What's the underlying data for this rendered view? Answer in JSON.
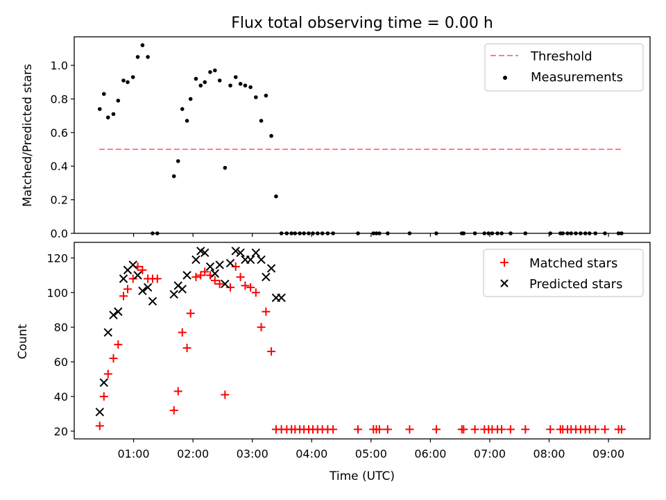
{
  "title": "Flux total observing time = 0.00 h",
  "xlabel": "Time (UTC)",
  "colors": {
    "threshold": "#ff7f7f",
    "measurement": "#000000",
    "matched": "#ff0000",
    "predicted": "#000000",
    "axes": "#000000",
    "background": "#ffffff"
  },
  "chart_data": [
    {
      "type": "scatter",
      "panel": "top",
      "ylabel": "Matched/Predicted stars",
      "xlim_hours": [
        0.0,
        9.7
      ],
      "ylim": [
        0.0,
        1.17
      ],
      "yticks": [
        0.0,
        0.2,
        0.4,
        0.6,
        0.8,
        1.0
      ],
      "ytick_labels": [
        "0.0",
        "0.2",
        "0.4",
        "0.6",
        "0.8",
        "1.0"
      ],
      "legend_position": "upper right",
      "series": [
        {
          "name": "Threshold",
          "kind": "line",
          "style": "dashed",
          "x_hours": [
            0.42,
            9.22
          ],
          "y": [
            0.5,
            0.5
          ]
        },
        {
          "name": "Measurements",
          "kind": "scatter",
          "marker": "dot",
          "x_hours": [
            0.43,
            0.5,
            0.57,
            0.66,
            0.74,
            0.83,
            0.9,
            0.99,
            1.07,
            1.15,
            1.24,
            1.32,
            1.4,
            1.68,
            1.75,
            1.82,
            1.9,
            1.96,
            2.05,
            2.13,
            2.2,
            2.29,
            2.37,
            2.45,
            2.54,
            2.63,
            2.72,
            2.8,
            2.88,
            2.97,
            3.06,
            3.15,
            3.23,
            3.32,
            3.4,
            3.49,
            3.58,
            3.66,
            3.72,
            3.8,
            3.87,
            3.95,
            4.02,
            4.1,
            4.18,
            4.27,
            4.36,
            4.78,
            5.04,
            5.09,
            5.14,
            5.28,
            5.65,
            6.1,
            6.53,
            6.56,
            6.75,
            6.91,
            6.98,
            7.04,
            7.13,
            7.2,
            7.35,
            7.6,
            8.02,
            8.19,
            8.23,
            8.31,
            8.37,
            8.45,
            8.53,
            8.61,
            8.68,
            8.78,
            8.94,
            9.17,
            9.22
          ],
          "y": [
            0.74,
            0.83,
            0.69,
            0.71,
            0.79,
            0.91,
            0.9,
            0.93,
            1.05,
            1.12,
            1.05,
            0.0,
            0.0,
            0.34,
            0.43,
            0.74,
            0.67,
            0.8,
            0.92,
            0.88,
            0.9,
            0.96,
            0.97,
            0.91,
            0.39,
            0.88,
            0.93,
            0.89,
            0.88,
            0.87,
            0.81,
            0.67,
            0.82,
            0.58,
            0.22,
            0.0,
            0.0,
            0.0,
            0.0,
            0.0,
            0.0,
            0.0,
            0.0,
            0.0,
            0.0,
            0.0,
            0.0,
            0.0,
            0.0,
            0.0,
            0.0,
            0.0,
            0.0,
            0.0,
            0.0,
            0.0,
            0.0,
            0.0,
            0.0,
            0.0,
            0.0,
            0.0,
            0.0,
            0.0,
            0.0,
            0.0,
            0.0,
            0.0,
            0.0,
            0.0,
            0.0,
            0.0,
            0.0,
            0.0,
            0.0,
            0.0,
            0.0
          ]
        }
      ]
    },
    {
      "type": "scatter",
      "panel": "bottom",
      "ylabel": "Count",
      "xlim_hours": [
        0.0,
        9.7
      ],
      "ylim": [
        15.5,
        129
      ],
      "yticks": [
        20,
        40,
        60,
        80,
        100,
        120
      ],
      "ytick_labels": [
        "20",
        "40",
        "60",
        "80",
        "100",
        "120"
      ],
      "legend_position": "upper right",
      "series": [
        {
          "name": "Matched stars",
          "kind": "scatter",
          "marker": "plus",
          "x_hours": [
            0.43,
            0.5,
            0.57,
            0.66,
            0.74,
            0.83,
            0.9,
            0.99,
            1.07,
            1.15,
            1.24,
            1.32,
            1.4,
            1.68,
            1.75,
            1.82,
            1.9,
            1.96,
            2.05,
            2.13,
            2.2,
            2.29,
            2.37,
            2.45,
            2.54,
            2.63,
            2.72,
            2.8,
            2.88,
            2.97,
            3.06,
            3.15,
            3.23,
            3.32,
            3.4,
            3.49,
            3.58,
            3.66,
            3.72,
            3.8,
            3.87,
            3.95,
            4.02,
            4.1,
            4.18,
            4.27,
            4.36,
            4.78,
            5.04,
            5.09,
            5.14,
            5.28,
            5.65,
            6.1,
            6.53,
            6.56,
            6.75,
            6.91,
            6.98,
            7.04,
            7.13,
            7.2,
            7.35,
            7.6,
            8.02,
            8.19,
            8.23,
            8.31,
            8.37,
            8.45,
            8.53,
            8.61,
            8.68,
            8.78,
            8.94,
            9.17,
            9.22
          ],
          "y": [
            23,
            40,
            53,
            62,
            70,
            98,
            102,
            108,
            115,
            113,
            108,
            108,
            108,
            32,
            43,
            77,
            68,
            88,
            109,
            110,
            112,
            110,
            107,
            105,
            41,
            103,
            115,
            109,
            104,
            103,
            100,
            80,
            89,
            66,
            21,
            21,
            21,
            21,
            21,
            21,
            21,
            21,
            21,
            21,
            21,
            21,
            21,
            21,
            21,
            21,
            21,
            21,
            21,
            21,
            21,
            21,
            21,
            21,
            21,
            21,
            21,
            21,
            21,
            21,
            21,
            21,
            21,
            21,
            21,
            21,
            21,
            21,
            21,
            21,
            21,
            21,
            21
          ]
        },
        {
          "name": "Predicted stars",
          "kind": "scatter",
          "marker": "x",
          "x_hours": [
            0.43,
            0.5,
            0.57,
            0.66,
            0.74,
            0.83,
            0.9,
            0.99,
            1.07,
            1.15,
            1.24,
            1.32,
            1.68,
            1.75,
            1.82,
            1.9,
            2.05,
            2.13,
            2.2,
            2.29,
            2.37,
            2.45,
            2.54,
            2.63,
            2.72,
            2.8,
            2.88,
            2.97,
            3.06,
            3.15,
            3.23,
            3.32,
            3.4,
            3.49
          ],
          "y": [
            31,
            48,
            77,
            87,
            89,
            108,
            113,
            116,
            110,
            101,
            103,
            95,
            99,
            104,
            102,
            110,
            119,
            124,
            123,
            115,
            111,
            116,
            105,
            117,
            124,
            123,
            119,
            119,
            123,
            119,
            109,
            114,
            97,
            97
          ]
        }
      ]
    }
  ],
  "xaxis": {
    "ticks_hours": [
      1,
      2,
      3,
      4,
      5,
      6,
      7,
      8,
      9
    ],
    "tick_labels": [
      "01:00",
      "02:00",
      "03:00",
      "04:00",
      "05:00",
      "06:00",
      "07:00",
      "08:00",
      "09:00"
    ]
  }
}
